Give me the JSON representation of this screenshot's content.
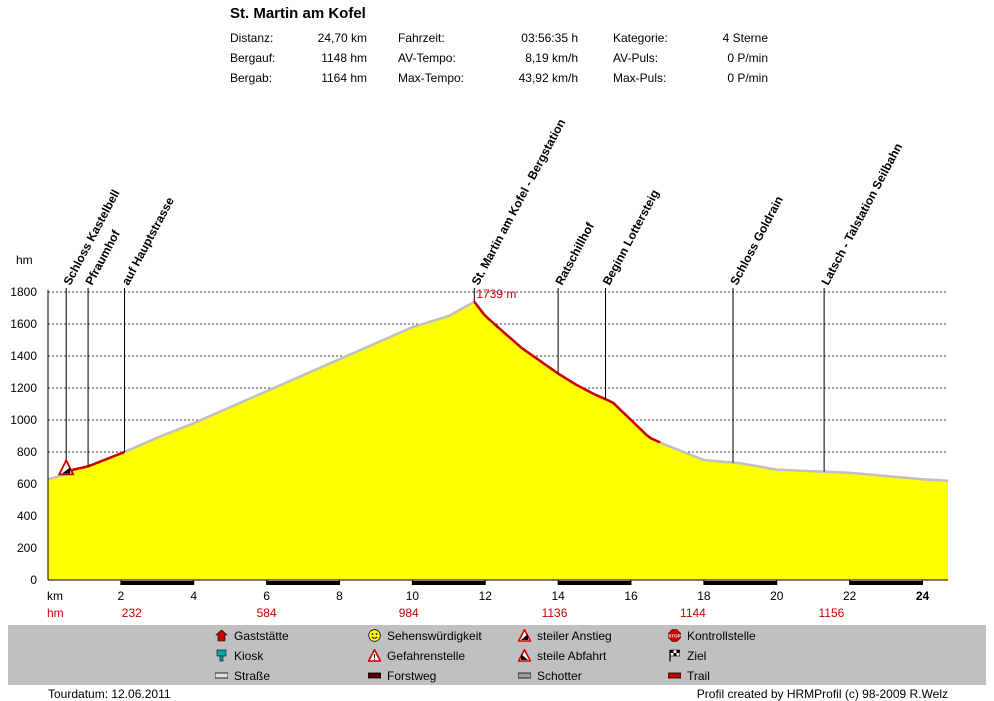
{
  "header": {
    "title": "St. Martin am Kofel",
    "stats": [
      {
        "label": "Distanz:",
        "value": "24,70 km"
      },
      {
        "label": "Bergauf:",
        "value": "1148 hm"
      },
      {
        "label": "Bergab:",
        "value": "1164 hm"
      },
      {
        "label": "Fahrzeit:",
        "value": "03:56:35 h"
      },
      {
        "label": "AV-Tempo:",
        "value": "8,19 km/h"
      },
      {
        "label": "Max-Tempo:",
        "value": "43,92 km/h"
      },
      {
        "label": "Kategorie:",
        "value": "4 Sterne"
      },
      {
        "label": "AV-Puls:",
        "value": "0 P/min"
      },
      {
        "label": "Max-Puls:",
        "value": "0 P/min"
      }
    ]
  },
  "chart_data": {
    "type": "area",
    "xlabel": "km",
    "ylabel": "hm",
    "xlim": [
      0,
      24.7
    ],
    "ylim": [
      0,
      1800
    ],
    "x_ticks": [
      "2",
      "4",
      "6",
      "8",
      "10",
      "12",
      "14",
      "16",
      "18",
      "20",
      "22",
      "24"
    ],
    "y_ticks": [
      "0",
      "200",
      "400",
      "600",
      "800",
      "1000",
      "1200",
      "1400",
      "1600",
      "1800"
    ],
    "grid": true,
    "fill_color": "#ffff00",
    "trail_color": "#cc0000",
    "road_color": "#c0c0c0",
    "peak_label": "1739 m",
    "x": [
      0,
      0.5,
      0.7,
      1.1,
      2.1,
      3,
      4,
      5,
      6,
      7,
      8,
      9,
      10,
      11,
      11.7,
      12,
      13,
      14,
      14.5,
      15,
      15.5,
      16,
      16.5,
      17,
      18,
      19,
      20,
      21,
      22,
      23,
      24,
      24.7
    ],
    "y": [
      630,
      660,
      690,
      710,
      800,
      890,
      980,
      1080,
      1180,
      1280,
      1380,
      1480,
      1580,
      1650,
      1739,
      1650,
      1450,
      1290,
      1220,
      1160,
      1110,
      1000,
      890,
      840,
      750,
      730,
      690,
      680,
      670,
      650,
      630,
      620
    ],
    "trail_segments": [
      [
        0.5,
        2.1
      ],
      [
        11.7,
        16.8
      ]
    ],
    "waypoints": [
      {
        "km": 0.5,
        "name": "Schloss Kastelbell"
      },
      {
        "km": 1.1,
        "name": "Pfraumhof"
      },
      {
        "km": 2.1,
        "name": "auf Hauptstrasse"
      },
      {
        "km": 11.7,
        "name": "St. Martin am Kofel - Bergstation"
      },
      {
        "km": 14.0,
        "name": "Ratschillhof"
      },
      {
        "km": 15.3,
        "name": "Beginn Lottersteig"
      },
      {
        "km": 18.8,
        "name": "Schloss Goldrain"
      },
      {
        "km": 21.3,
        "name": "Latsch - Talstation Seilbahn"
      }
    ],
    "surface_bands": [
      [
        2,
        4
      ],
      [
        6,
        8
      ],
      [
        10,
        12
      ],
      [
        14,
        16
      ],
      [
        18,
        20
      ],
      [
        22,
        24
      ]
    ],
    "hm_label": "hm",
    "hm_row": [
      {
        "km": 2.3,
        "value": "232"
      },
      {
        "km": 6.0,
        "value": "584"
      },
      {
        "km": 9.9,
        "value": "984"
      },
      {
        "km": 13.9,
        "value": "1136"
      },
      {
        "km": 17.7,
        "value": "1144"
      },
      {
        "km": 21.5,
        "value": "1156"
      }
    ]
  },
  "legend": [
    {
      "label": "Gaststätte",
      "icon": "house-icon",
      "color": "#cc0000"
    },
    {
      "label": "Kiosk",
      "icon": "kiosk-icon",
      "color": "#00aaaa"
    },
    {
      "label": "Straße",
      "icon": "road-icon",
      "color": "#e0e0e0"
    },
    {
      "label": "Sehenswürdigkeit",
      "icon": "smiley-icon",
      "color": "#ffff00"
    },
    {
      "label": "Gefahrenstelle",
      "icon": "danger-icon",
      "color": "#cc0000"
    },
    {
      "label": "Forstweg",
      "icon": "forest-road-icon",
      "color": "#550000"
    },
    {
      "label": "steiler Anstieg",
      "icon": "steep-climb-icon",
      "color": "#cc0000"
    },
    {
      "label": "steile Abfahrt",
      "icon": "steep-descent-icon",
      "color": "#cc0000"
    },
    {
      "label": "Schotter",
      "icon": "gravel-icon",
      "color": "#a0a0a0"
    },
    {
      "label": "Kontrollstelle",
      "icon": "stop-icon",
      "color": "#cc0000"
    },
    {
      "label": "Ziel",
      "icon": "finish-flag-icon",
      "color": "#000000"
    },
    {
      "label": "Trail",
      "icon": "trail-icon",
      "color": "#cc0000"
    }
  ],
  "footer": {
    "date": "Tourdatum: 12.06.2011",
    "credit": "Profil created by HRMProfil (c) 98-2009 R.Welz"
  }
}
